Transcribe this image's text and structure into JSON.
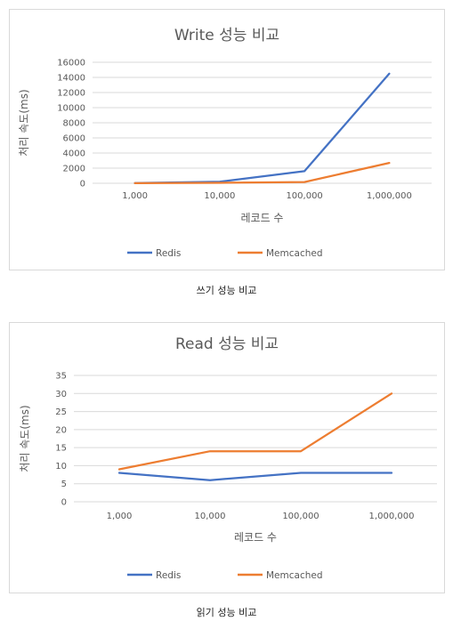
{
  "chart_data": [
    {
      "type": "line",
      "title": "Write 성능 비교",
      "xlabel": "레코드 수",
      "ylabel": "처리 속도(ms)",
      "categories": [
        "1,000",
        "10,000",
        "100,000",
        "1,000,000"
      ],
      "ylim": [
        0,
        16000
      ],
      "yticks": [
        0,
        2000,
        4000,
        6000,
        8000,
        10000,
        12000,
        14000,
        16000
      ],
      "grid": true,
      "legend": "bottom",
      "series": [
        {
          "name": "Redis",
          "color": "#4472c4",
          "values": [
            20,
            200,
            1600,
            14500
          ]
        },
        {
          "name": "Memcached",
          "color": "#ed7d31",
          "values": [
            10,
            60,
            160,
            2700
          ]
        }
      ],
      "caption": "쓰기 성능 비교"
    },
    {
      "type": "line",
      "title": "Read 성능 비교",
      "xlabel": "레코드 수",
      "ylabel": "처리 속도(ms)",
      "categories": [
        "1,000",
        "10,000",
        "100,000",
        "1,000,000"
      ],
      "ylim": [
        0,
        35
      ],
      "yticks": [
        0,
        5,
        10,
        15,
        20,
        25,
        30,
        35
      ],
      "grid": true,
      "legend": "bottom",
      "series": [
        {
          "name": "Redis",
          "color": "#4472c4",
          "values": [
            8,
            6,
            8,
            8
          ]
        },
        {
          "name": "Memcached",
          "color": "#ed7d31",
          "values": [
            9,
            14,
            14,
            30
          ]
        }
      ],
      "caption": "읽기 성능 비교"
    }
  ]
}
